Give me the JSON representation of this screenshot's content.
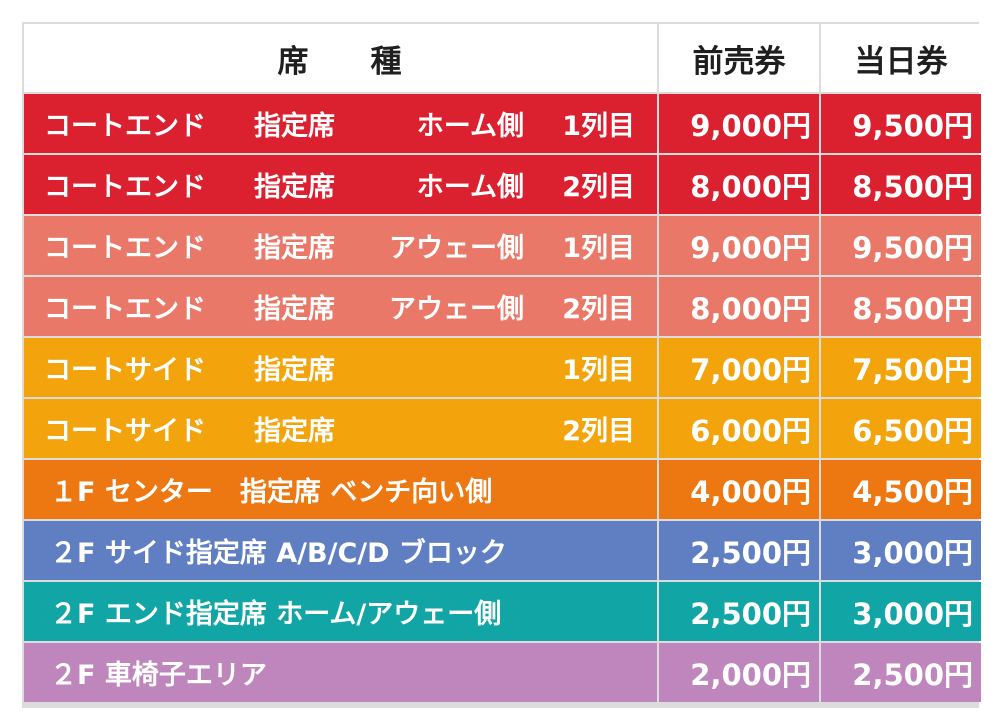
{
  "header": {
    "seat_label_1": "席",
    "seat_label_2": "種",
    "advance_label": "前売券",
    "sameday_label": "当日券"
  },
  "rows": [
    {
      "color": "#db2130",
      "area": "コートエンド",
      "type": "指定席",
      "side": "ホーム側",
      "rowno": "1列目",
      "advance": "9,000円",
      "sameday": "9,500円"
    },
    {
      "color": "#db2130",
      "area": "コートエンド",
      "type": "指定席",
      "side": "ホーム側",
      "rowno": "2列目",
      "advance": "8,000円",
      "sameday": "8,500円"
    },
    {
      "color": "#ea7868",
      "area": "コートエンド",
      "type": "指定席",
      "side": "アウェー側",
      "rowno": "1列目",
      "advance": "9,000円",
      "sameday": "9,500円"
    },
    {
      "color": "#ea7868",
      "area": "コートエンド",
      "type": "指定席",
      "side": "アウェー側",
      "rowno": "2列目",
      "advance": "8,000円",
      "sameday": "8,500円"
    },
    {
      "color": "#f3a40c",
      "area": "コートサイド",
      "type": "指定席",
      "side": "",
      "rowno": "1列目",
      "advance": "7,000円",
      "sameday": "7,500円"
    },
    {
      "color": "#f3a40c",
      "area": "コートサイド",
      "type": "指定席",
      "side": "",
      "rowno": "2列目",
      "advance": "6,000円",
      "sameday": "6,500円"
    },
    {
      "color": "#ed7710",
      "label": "１F センター　指定席  ベンチ向い側",
      "advance": "4,000円",
      "sameday": "4,500円"
    },
    {
      "color": "#5f7fc2",
      "label": "２F サイド指定席 A/B/C/D ブロック",
      "advance": "2,500円",
      "sameday": "3,000円"
    },
    {
      "color": "#12a5a5",
      "label": "２F エンド指定席 ホーム/アウェー側",
      "advance": "2,500円",
      "sameday": "3,000円"
    },
    {
      "color": "#bf86bd",
      "label": "２F 車椅子エリア",
      "advance": "2,000円",
      "sameday": "2,500円"
    }
  ]
}
